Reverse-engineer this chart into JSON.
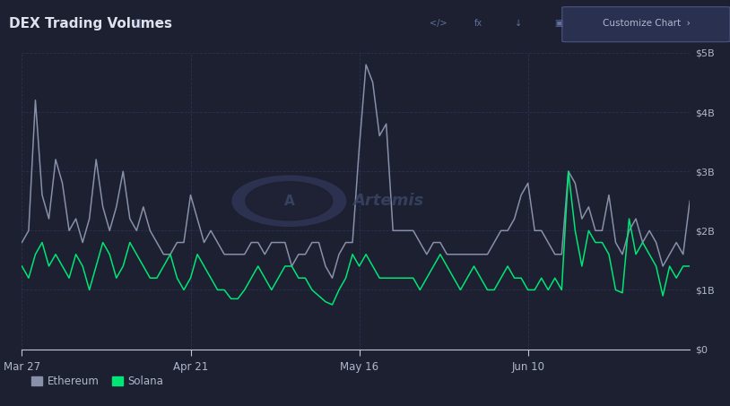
{
  "title": "DEX Trading Volumes",
  "background_color": "#1c2030",
  "plot_bg_color": "#1c2030",
  "grid_color": "#2a3050",
  "text_color": "#b0b8cc",
  "ethereum_color": "#8890aa",
  "solana_color": "#00e676",
  "x_labels": [
    "Mar 27",
    "Apr 21",
    "May 16",
    "Jun 10"
  ],
  "x_tick_positions": [
    0,
    25,
    50,
    75
  ],
  "ylim": [
    0,
    5000000000
  ],
  "yticks": [
    0,
    1000000000,
    2000000000,
    3000000000,
    4000000000,
    5000000000
  ],
  "ytick_labels": [
    "$0",
    "$1B",
    "$2B",
    "$3B",
    "$4B",
    "$5B"
  ],
  "ethereum": [
    1800000000,
    2000000000,
    4200000000,
    2600000000,
    2200000000,
    3200000000,
    2800000000,
    2000000000,
    2200000000,
    1800000000,
    2200000000,
    3200000000,
    2400000000,
    2000000000,
    2400000000,
    3000000000,
    2200000000,
    2000000000,
    2400000000,
    2000000000,
    1800000000,
    1600000000,
    1600000000,
    1800000000,
    1800000000,
    2600000000,
    2200000000,
    1800000000,
    2000000000,
    1800000000,
    1600000000,
    1600000000,
    1600000000,
    1600000000,
    1800000000,
    1800000000,
    1600000000,
    1800000000,
    1800000000,
    1800000000,
    1400000000,
    1600000000,
    1600000000,
    1800000000,
    1800000000,
    1400000000,
    1200000000,
    1600000000,
    1800000000,
    1800000000,
    3400000000,
    4800000000,
    4500000000,
    3600000000,
    3800000000,
    2000000000,
    2000000000,
    2000000000,
    2000000000,
    1800000000,
    1600000000,
    1800000000,
    1800000000,
    1600000000,
    1600000000,
    1600000000,
    1600000000,
    1600000000,
    1600000000,
    1600000000,
    1800000000,
    2000000000,
    2000000000,
    2200000000,
    2600000000,
    2800000000,
    2000000000,
    2000000000,
    1800000000,
    1600000000,
    1600000000,
    3000000000,
    2800000000,
    2200000000,
    2400000000,
    2000000000,
    2000000000,
    2600000000,
    1800000000,
    1600000000,
    2000000000,
    2200000000,
    1800000000,
    2000000000,
    1800000000,
    1400000000,
    1600000000,
    1800000000,
    1600000000,
    2500000000
  ],
  "solana": [
    1400000000,
    1200000000,
    1600000000,
    1800000000,
    1400000000,
    1600000000,
    1400000000,
    1200000000,
    1600000000,
    1400000000,
    1000000000,
    1400000000,
    1800000000,
    1600000000,
    1200000000,
    1400000000,
    1800000000,
    1600000000,
    1400000000,
    1200000000,
    1200000000,
    1400000000,
    1600000000,
    1200000000,
    1000000000,
    1200000000,
    1600000000,
    1400000000,
    1200000000,
    1000000000,
    1000000000,
    850000000,
    850000000,
    1000000000,
    1200000000,
    1400000000,
    1200000000,
    1000000000,
    1200000000,
    1400000000,
    1400000000,
    1200000000,
    1200000000,
    1000000000,
    900000000,
    800000000,
    750000000,
    1000000000,
    1200000000,
    1600000000,
    1400000000,
    1600000000,
    1400000000,
    1200000000,
    1200000000,
    1200000000,
    1200000000,
    1200000000,
    1200000000,
    1000000000,
    1200000000,
    1400000000,
    1600000000,
    1400000000,
    1200000000,
    1000000000,
    1200000000,
    1400000000,
    1200000000,
    1000000000,
    1000000000,
    1200000000,
    1400000000,
    1200000000,
    1200000000,
    1000000000,
    1000000000,
    1200000000,
    1000000000,
    1200000000,
    1000000000,
    3000000000,
    2000000000,
    1400000000,
    2000000000,
    1800000000,
    1800000000,
    1600000000,
    1000000000,
    950000000,
    2200000000,
    1600000000,
    1800000000,
    1600000000,
    1400000000,
    900000000,
    1400000000,
    1200000000,
    1400000000,
    1400000000
  ],
  "n_points": 100,
  "legend_ethereum": "Ethereum",
  "legend_solana": "Solana"
}
